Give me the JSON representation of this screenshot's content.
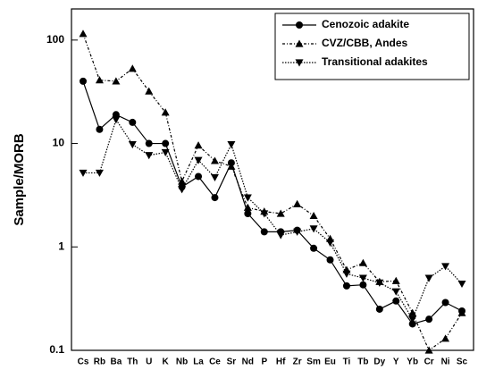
{
  "chart_data": {
    "type": "line",
    "y_label": "Sample/MORB",
    "y_scale": "log",
    "categories": [
      "Cs",
      "Rb",
      "Ba",
      "Th",
      "U",
      "K",
      "Nb",
      "La",
      "Ce",
      "Sr",
      "Nd",
      "P",
      "Hf",
      "Zr",
      "Sm",
      "Eu",
      "Ti",
      "Tb",
      "Dy",
      "Y",
      "Yb",
      "Cr",
      "Ni",
      "Sc"
    ],
    "ylim": [
      0.1,
      200
    ],
    "yticks": [
      0.1,
      1,
      10,
      100
    ],
    "legend": "upper right",
    "series": [
      {
        "name": "Cenozoic adakite",
        "color": "#000000",
        "marker": "circle",
        "dash": "solid",
        "values": [
          40,
          13.7,
          19,
          16,
          10,
          10,
          3.8,
          4.8,
          3,
          6.5,
          2.1,
          1.4,
          1.4,
          1.45,
          0.97,
          0.75,
          0.42,
          0.43,
          0.25,
          0.3,
          0.18,
          0.2,
          0.29,
          0.24
        ]
      },
      {
        "name": "CVZ/CBB, Andes",
        "color": "#000000",
        "marker": "triangle-up",
        "dash": "dashdot",
        "values": [
          115,
          41,
          40,
          53,
          32,
          20,
          4.3,
          9.6,
          6.8,
          6,
          2.4,
          2.2,
          2.1,
          2.6,
          2,
          1.2,
          0.6,
          0.7,
          0.46,
          0.47,
          0.23,
          0.1,
          0.13,
          0.23
        ]
      },
      {
        "name": "Transitional adakites",
        "color": "#000000",
        "marker": "triangle-down",
        "dash": "dotted",
        "values": [
          5.2,
          5.2,
          17,
          9.8,
          7.7,
          8.2,
          3.6,
          6.9,
          4.7,
          9.8,
          3,
          2.1,
          1.3,
          1.4,
          1.5,
          1.1,
          0.55,
          0.5,
          0.45,
          0.37,
          0.2,
          0.5,
          0.65,
          0.44
        ]
      }
    ]
  }
}
